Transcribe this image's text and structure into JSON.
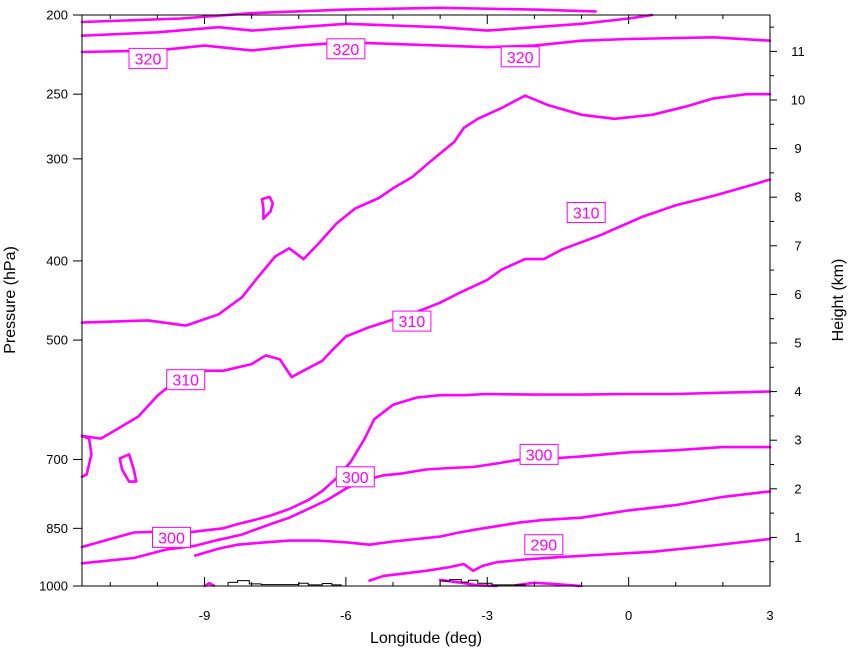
{
  "chart_data": {
    "type": "line",
    "title": "",
    "xlabel": "Longitude (deg)",
    "ylabel": "Pressure (hPa)",
    "ylabel_right": "Height (km)",
    "xlim": [
      -11.6,
      3
    ],
    "ylim": [
      1000,
      200
    ],
    "y_scale": "log",
    "grid": false,
    "x_ticks": [
      -9,
      -6,
      -3,
      0,
      3
    ],
    "y_ticks": [
      200,
      250,
      300,
      400,
      500,
      700,
      850,
      1000
    ],
    "right_ticks": [
      1,
      2,
      3,
      4,
      5,
      6,
      7,
      8,
      9,
      10,
      11
    ],
    "line_color": "#ff00ff",
    "terrain_color": "#000000",
    "series": [
      {
        "values": [
          [
            -11.6,
            204
          ],
          [
            -9.5,
            202
          ],
          [
            -8,
            199
          ],
          [
            -6,
            197
          ],
          [
            -4,
            196
          ],
          [
            -2,
            197
          ],
          [
            -0.7,
            198
          ]
        ]
      },
      {
        "values": [
          [
            -11.6,
            212
          ],
          [
            -10,
            210
          ],
          [
            -8.7,
            207
          ],
          [
            -8,
            209
          ],
          [
            -7,
            207
          ],
          [
            -6,
            205
          ],
          [
            -5,
            206
          ],
          [
            -4,
            207
          ],
          [
            -3,
            209
          ],
          [
            -2,
            207
          ],
          [
            -1,
            205
          ],
          [
            0,
            202
          ],
          [
            0.5,
            200
          ]
        ]
      },
      {
        "values": [
          [
            -11.6,
            222
          ],
          [
            -10,
            221
          ],
          [
            -9,
            218
          ],
          [
            -8,
            221
          ],
          [
            -7,
            218
          ],
          [
            -6,
            216
          ],
          [
            -5,
            217
          ],
          [
            -4,
            218
          ],
          [
            -3,
            219
          ],
          [
            -2,
            218
          ],
          [
            -1,
            215
          ],
          [
            0,
            214
          ],
          [
            1.8,
            213
          ],
          [
            3,
            215
          ]
        ]
      },
      {
        "values": [
          [
            -11.6,
            476
          ],
          [
            -10.2,
            473
          ],
          [
            -9.4,
            480
          ],
          [
            -8.7,
            465
          ],
          [
            -8.2,
            443
          ],
          [
            -7.9,
            421
          ],
          [
            -7.5,
            395
          ],
          [
            -7.2,
            386
          ],
          [
            -6.9,
            398
          ],
          [
            -6.6,
            382
          ],
          [
            -6.2,
            360
          ],
          [
            -5.8,
            345
          ],
          [
            -5.3,
            335
          ],
          [
            -5,
            326
          ],
          [
            -4.6,
            316
          ],
          [
            -4.2,
            302
          ],
          [
            -3.7,
            286
          ],
          [
            -3.5,
            275
          ],
          [
            -3.2,
            268
          ],
          [
            -2.7,
            260
          ],
          [
            -2.2,
            251
          ],
          [
            -1.7,
            258
          ],
          [
            -1,
            265
          ],
          [
            -0.3,
            268
          ],
          [
            0.5,
            265
          ],
          [
            1.2,
            259
          ],
          [
            1.8,
            253
          ],
          [
            2.5,
            250
          ],
          [
            3,
            250
          ]
        ]
      },
      {
        "values": [
          [
            -7.75,
            355
          ],
          [
            -7.6,
            348
          ],
          [
            -7.55,
            340
          ],
          [
            -7.62,
            334
          ],
          [
            -7.78,
            336
          ],
          [
            -7.75,
            345
          ],
          [
            -7.75,
            355
          ]
        ]
      },
      {
        "values": [
          [
            -11.6,
            655
          ],
          [
            -11.2,
            660
          ],
          [
            -10.9,
            645
          ],
          [
            -10.4,
            620
          ],
          [
            -10,
            585
          ],
          [
            -9.6,
            560
          ],
          [
            -9.1,
            545
          ],
          [
            -8.6,
            545
          ],
          [
            -8,
            535
          ],
          [
            -7.7,
            522
          ],
          [
            -7.4,
            528
          ],
          [
            -7.15,
            555
          ],
          [
            -6.9,
            545
          ],
          [
            -6.5,
            530
          ],
          [
            -6.3,
            515
          ],
          [
            -6,
            495
          ],
          [
            -5.5,
            482
          ],
          [
            -5,
            472
          ],
          [
            -4.5,
            462
          ],
          [
            -4,
            450
          ],
          [
            -3.6,
            438
          ],
          [
            -3,
            422
          ],
          [
            -2.7,
            410
          ],
          [
            -2.2,
            398
          ],
          [
            -1.8,
            398
          ],
          [
            -1.4,
            387
          ],
          [
            -0.6,
            372
          ],
          [
            0.3,
            353
          ],
          [
            1,
            342
          ],
          [
            1.8,
            333
          ],
          [
            2.6,
            323
          ],
          [
            3,
            318
          ]
        ]
      },
      {
        "values": [
          [
            -11.6,
            655
          ],
          [
            -11.45,
            660
          ],
          [
            -11.4,
            690
          ],
          [
            -11.5,
            730
          ],
          [
            -11.6,
            735
          ]
        ]
      },
      {
        "values": [
          [
            -10.8,
            698
          ],
          [
            -10.6,
            690
          ],
          [
            -10.5,
            720
          ],
          [
            -10.45,
            745
          ],
          [
            -10.6,
            745
          ],
          [
            -10.75,
            720
          ],
          [
            -10.8,
            698
          ]
        ]
      },
      {
        "values": [
          [
            -11.6,
            896
          ],
          [
            -11,
            876
          ],
          [
            -10.5,
            860
          ],
          [
            -10,
            858
          ],
          [
            -9.5,
            862
          ],
          [
            -9,
            855
          ],
          [
            -8.6,
            850
          ],
          [
            -8.3,
            840
          ],
          [
            -8,
            832
          ],
          [
            -7.6,
            820
          ],
          [
            -7.2,
            805
          ],
          [
            -6.8,
            785
          ],
          [
            -6.5,
            765
          ],
          [
            -6.2,
            738
          ],
          [
            -5.9,
            705
          ],
          [
            -5.6,
            660
          ],
          [
            -5.4,
            625
          ],
          [
            -5,
            600
          ],
          [
            -4.5,
            588
          ],
          [
            -4,
            584
          ],
          [
            -3.5,
            584
          ],
          [
            -3,
            582
          ],
          [
            -2,
            583
          ],
          [
            -1,
            583
          ],
          [
            0,
            582
          ],
          [
            1,
            582
          ],
          [
            2,
            580
          ],
          [
            3,
            578
          ]
        ]
      },
      {
        "values": [
          [
            -11.6,
            938
          ],
          [
            -10.5,
            924
          ],
          [
            -9.8,
            902
          ],
          [
            -9.2,
            893
          ],
          [
            -8.7,
            878
          ],
          [
            -8.2,
            865
          ],
          [
            -7.6,
            840
          ],
          [
            -7.2,
            825
          ],
          [
            -6.8,
            805
          ],
          [
            -6.4,
            785
          ],
          [
            -6,
            760
          ],
          [
            -5.6,
            742
          ],
          [
            -5.2,
            732
          ],
          [
            -4.8,
            728
          ],
          [
            -4.3,
            720
          ],
          [
            -3.8,
            717
          ],
          [
            -3.3,
            715
          ],
          [
            -2.8,
            708
          ],
          [
            -2.3,
            700
          ],
          [
            -1.8,
            699
          ],
          [
            -1,
            694
          ],
          [
            0,
            686
          ],
          [
            1,
            682
          ],
          [
            2,
            676
          ],
          [
            3,
            676
          ]
        ]
      },
      {
        "values": [
          [
            -9.2,
            918
          ],
          [
            -8.7,
            900
          ],
          [
            -8.3,
            890
          ],
          [
            -7.8,
            885
          ],
          [
            -7.2,
            880
          ],
          [
            -6.6,
            880
          ],
          [
            -6,
            884
          ],
          [
            -5.5,
            890
          ],
          [
            -5,
            882
          ],
          [
            -4.5,
            876
          ],
          [
            -4,
            870
          ],
          [
            -3.6,
            860
          ],
          [
            -3.2,
            852
          ],
          [
            -2.8,
            845
          ],
          [
            -2.3,
            836
          ],
          [
            -1.8,
            830
          ],
          [
            -1,
            825
          ],
          [
            0,
            808
          ],
          [
            1,
            796
          ],
          [
            2,
            778
          ],
          [
            3,
            766
          ]
        ]
      },
      {
        "values": [
          [
            -5.5,
            985
          ],
          [
            -5.2,
            972
          ],
          [
            -4.8,
            966
          ],
          [
            -4.3,
            958
          ],
          [
            -3.8,
            948
          ],
          [
            -3.5,
            940
          ],
          [
            -3.3,
            958
          ],
          [
            -3.1,
            945
          ],
          [
            -2.8,
            935
          ],
          [
            -2.2,
            928
          ],
          [
            -1.5,
            922
          ],
          [
            -0.5,
            915
          ],
          [
            0.5,
            908
          ],
          [
            1.5,
            896
          ],
          [
            3,
            876
          ]
        ]
      },
      {
        "values": [
          [
            -9,
            1000
          ],
          [
            -8.9,
            992
          ],
          [
            -8.8,
            999
          ]
        ]
      },
      {
        "values": [
          [
            -4,
            983
          ],
          [
            -3.6,
            990
          ],
          [
            -3.2,
            998
          ],
          [
            -2.8,
            1000
          ]
        ]
      },
      {
        "values": [
          [
            -2.4,
            998
          ],
          [
            -2,
            991
          ],
          [
            -1.6,
            994
          ],
          [
            -1,
            1000
          ]
        ]
      }
    ],
    "terrain": [
      {
        "values": [
          [
            -8.5,
            1000
          ],
          [
            -8.5,
            990
          ],
          [
            -8.3,
            990
          ],
          [
            -8.3,
            985
          ],
          [
            -8.05,
            985
          ],
          [
            -8.05,
            994
          ],
          [
            -7.8,
            994
          ],
          [
            -7.8,
            996
          ],
          [
            -7,
            996
          ],
          [
            -7,
            992
          ],
          [
            -6.8,
            992
          ],
          [
            -6.8,
            997
          ],
          [
            -6.5,
            997
          ],
          [
            -6.5,
            993
          ],
          [
            -6.3,
            993
          ],
          [
            -6.3,
            997
          ],
          [
            -6.1,
            997
          ],
          [
            -6.1,
            1000
          ]
        ]
      },
      {
        "values": [
          [
            -4,
            1000
          ],
          [
            -4,
            986
          ],
          [
            -3.8,
            986
          ],
          [
            -3.8,
            982
          ],
          [
            -3.55,
            982
          ],
          [
            -3.55,
            989
          ],
          [
            -3.4,
            989
          ],
          [
            -3.4,
            984
          ],
          [
            -3.2,
            984
          ],
          [
            -3.2,
            992
          ],
          [
            -2.9,
            992
          ],
          [
            -2.9,
            997
          ],
          [
            -2.2,
            997
          ],
          [
            -2.2,
            1000
          ]
        ]
      }
    ],
    "contour_labels": [
      {
        "text": "320",
        "x": -10.2,
        "y": 226
      },
      {
        "text": "320",
        "x": -6,
        "y": 220
      },
      {
        "text": "320",
        "x": -2.3,
        "y": 225
      },
      {
        "text": "310",
        "x": -9.4,
        "y": 559
      },
      {
        "text": "310",
        "x": -4.6,
        "y": 474
      },
      {
        "text": "310",
        "x": -0.9,
        "y": 349
      },
      {
        "text": "300",
        "x": -9.7,
        "y": 872
      },
      {
        "text": "300",
        "x": -5.8,
        "y": 735
      },
      {
        "text": "300",
        "x": -1.9,
        "y": 690
      },
      {
        "text": "290",
        "x": -1.8,
        "y": 890
      }
    ]
  }
}
